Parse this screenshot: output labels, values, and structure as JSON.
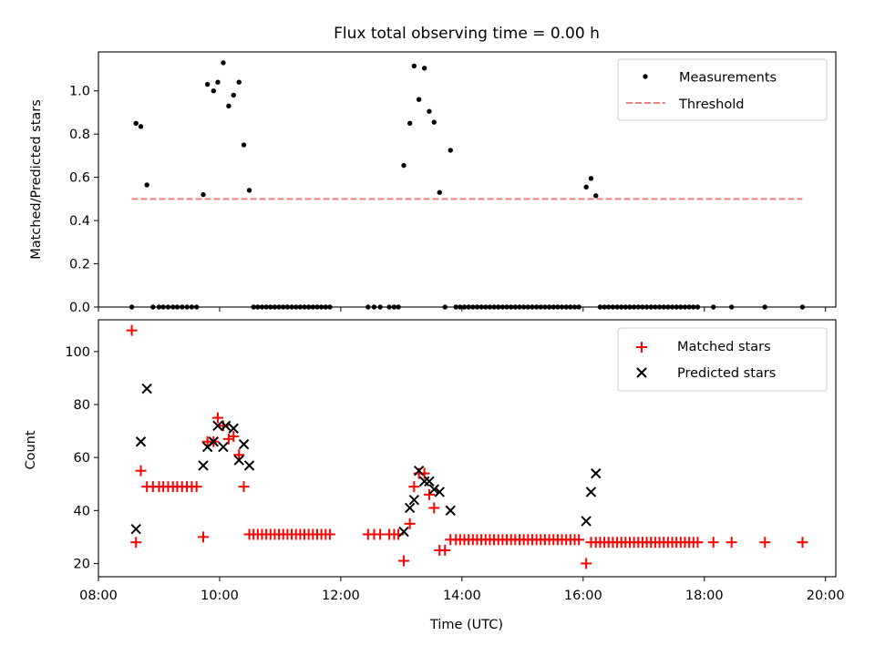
{
  "chart_data": [
    {
      "type": "scatter",
      "title": "Flux total observing time = 0.00 h",
      "xlabel": "",
      "ylabel": "Matched/Predicted stars",
      "ylim": [
        0,
        1.18
      ],
      "xlim": [
        8.0,
        20.17
      ],
      "y_ticks": [
        "0.0",
        "0.2",
        "0.4",
        "0.6",
        "0.8",
        "1.0"
      ],
      "x_tick_labels_shown": false,
      "legend_position": "top-right",
      "series": [
        {
          "name": "Measurements",
          "marker": "dot",
          "color": "#000000",
          "points": [
            [
              8.55,
              0
            ],
            [
              8.62,
              0.85
            ],
            [
              8.7,
              0.835
            ],
            [
              8.8,
              0.565
            ],
            [
              8.9,
              0
            ],
            [
              9.0,
              0
            ],
            [
              9.07,
              0
            ],
            [
              9.15,
              0
            ],
            [
              9.23,
              0
            ],
            [
              9.3,
              0
            ],
            [
              9.38,
              0
            ],
            [
              9.46,
              0
            ],
            [
              9.54,
              0
            ],
            [
              9.62,
              0
            ],
            [
              9.73,
              0.52
            ],
            [
              9.8,
              1.03
            ],
            [
              9.9,
              1.0
            ],
            [
              9.97,
              1.04
            ],
            [
              10.06,
              1.13
            ],
            [
              10.15,
              0.93
            ],
            [
              10.23,
              0.98
            ],
            [
              10.32,
              1.04
            ],
            [
              10.4,
              0.75
            ],
            [
              10.49,
              0.54
            ],
            [
              10.56,
              0
            ],
            [
              10.63,
              0
            ],
            [
              10.7,
              0
            ],
            [
              10.77,
              0
            ],
            [
              10.84,
              0
            ],
            [
              10.91,
              0
            ],
            [
              10.98,
              0
            ],
            [
              11.05,
              0
            ],
            [
              11.12,
              0
            ],
            [
              11.19,
              0
            ],
            [
              11.26,
              0
            ],
            [
              11.33,
              0
            ],
            [
              11.4,
              0
            ],
            [
              11.47,
              0
            ],
            [
              11.54,
              0
            ],
            [
              11.61,
              0
            ],
            [
              11.68,
              0
            ],
            [
              11.75,
              0
            ],
            [
              11.82,
              0
            ],
            [
              12.45,
              0
            ],
            [
              12.55,
              0
            ],
            [
              12.65,
              0
            ],
            [
              12.8,
              0
            ],
            [
              12.88,
              0
            ],
            [
              12.95,
              0
            ],
            [
              13.04,
              0.655
            ],
            [
              13.14,
              0.85
            ],
            [
              13.21,
              1.115
            ],
            [
              13.29,
              0.96
            ],
            [
              13.38,
              1.105
            ],
            [
              13.46,
              0.905
            ],
            [
              13.54,
              0.855
            ],
            [
              13.63,
              0.53
            ],
            [
              13.81,
              0.725
            ],
            [
              13.72,
              0
            ],
            [
              13.9,
              0
            ],
            [
              13.97,
              0
            ],
            [
              14.04,
              0
            ],
            [
              14.11,
              0
            ],
            [
              14.18,
              0
            ],
            [
              14.25,
              0
            ],
            [
              14.32,
              0
            ],
            [
              14.39,
              0
            ],
            [
              14.46,
              0
            ],
            [
              14.53,
              0
            ],
            [
              14.6,
              0
            ],
            [
              14.67,
              0
            ],
            [
              14.74,
              0
            ],
            [
              14.81,
              0
            ],
            [
              14.88,
              0
            ],
            [
              14.95,
              0
            ],
            [
              15.02,
              0
            ],
            [
              15.09,
              0
            ],
            [
              15.16,
              0
            ],
            [
              15.23,
              0
            ],
            [
              15.3,
              0
            ],
            [
              15.37,
              0
            ],
            [
              15.44,
              0
            ],
            [
              15.51,
              0
            ],
            [
              15.58,
              0
            ],
            [
              15.65,
              0
            ],
            [
              15.72,
              0
            ],
            [
              15.79,
              0
            ],
            [
              15.86,
              0
            ],
            [
              15.93,
              0
            ],
            [
              16.05,
              0.555
            ],
            [
              16.13,
              0.595
            ],
            [
              16.21,
              0.515
            ],
            [
              16.28,
              0
            ],
            [
              16.35,
              0
            ],
            [
              16.42,
              0
            ],
            [
              16.49,
              0
            ],
            [
              16.56,
              0
            ],
            [
              16.63,
              0
            ],
            [
              16.7,
              0
            ],
            [
              16.77,
              0
            ],
            [
              16.84,
              0
            ],
            [
              16.91,
              0
            ],
            [
              16.98,
              0
            ],
            [
              17.05,
              0
            ],
            [
              17.12,
              0
            ],
            [
              17.19,
              0
            ],
            [
              17.26,
              0
            ],
            [
              17.33,
              0
            ],
            [
              17.4,
              0
            ],
            [
              17.47,
              0
            ],
            [
              17.54,
              0
            ],
            [
              17.61,
              0
            ],
            [
              17.68,
              0
            ],
            [
              17.75,
              0
            ],
            [
              17.82,
              0
            ],
            [
              17.89,
              0
            ],
            [
              18.15,
              0
            ],
            [
              18.45,
              0
            ],
            [
              19.0,
              0
            ],
            [
              19.62,
              0
            ]
          ]
        },
        {
          "name": "Threshold",
          "type": "line",
          "style": "dashed",
          "color": "#f08080",
          "x": [
            8.55,
            19.62
          ],
          "y": [
            0.5,
            0.5
          ]
        }
      ]
    },
    {
      "type": "scatter",
      "title": "",
      "xlabel": "Time (UTC)",
      "ylabel": "Count",
      "ylim": [
        15,
        112
      ],
      "xlim": [
        8.0,
        20.17
      ],
      "x_ticks": [
        8,
        10,
        12,
        14,
        16,
        18,
        20
      ],
      "x_tick_labels": [
        "08:00",
        "10:00",
        "12:00",
        "14:00",
        "16:00",
        "18:00",
        "20:00"
      ],
      "y_ticks": [
        "20",
        "40",
        "60",
        "80",
        "100"
      ],
      "legend_position": "top-right",
      "series": [
        {
          "name": "Matched stars",
          "marker": "plus",
          "color": "#ff0000",
          "points": [
            [
              8.55,
              108
            ],
            [
              8.62,
              28
            ],
            [
              8.7,
              55
            ],
            [
              8.8,
              49
            ],
            [
              8.9,
              49
            ],
            [
              9.0,
              49
            ],
            [
              9.07,
              49
            ],
            [
              9.15,
              49
            ],
            [
              9.23,
              49
            ],
            [
              9.3,
              49
            ],
            [
              9.38,
              49
            ],
            [
              9.46,
              49
            ],
            [
              9.54,
              49
            ],
            [
              9.62,
              49
            ],
            [
              9.73,
              30
            ],
            [
              9.8,
              66
            ],
            [
              9.9,
              66
            ],
            [
              9.97,
              75
            ],
            [
              10.06,
              72
            ],
            [
              10.15,
              67
            ],
            [
              10.23,
              68
            ],
            [
              10.32,
              61
            ],
            [
              10.4,
              49
            ],
            [
              10.49,
              31
            ],
            [
              10.56,
              31
            ],
            [
              10.63,
              31
            ],
            [
              10.7,
              31
            ],
            [
              10.77,
              31
            ],
            [
              10.84,
              31
            ],
            [
              10.91,
              31
            ],
            [
              10.98,
              31
            ],
            [
              11.05,
              31
            ],
            [
              11.12,
              31
            ],
            [
              11.19,
              31
            ],
            [
              11.26,
              31
            ],
            [
              11.33,
              31
            ],
            [
              11.4,
              31
            ],
            [
              11.47,
              31
            ],
            [
              11.54,
              31
            ],
            [
              11.61,
              31
            ],
            [
              11.68,
              31
            ],
            [
              11.75,
              31
            ],
            [
              11.82,
              31
            ],
            [
              12.45,
              31
            ],
            [
              12.55,
              31
            ],
            [
              12.65,
              31
            ],
            [
              12.8,
              31
            ],
            [
              12.88,
              31
            ],
            [
              12.95,
              31
            ],
            [
              13.04,
              21
            ],
            [
              13.14,
              35
            ],
            [
              13.21,
              49
            ],
            [
              13.29,
              54
            ],
            [
              13.38,
              54
            ],
            [
              13.46,
              46
            ],
            [
              13.54,
              41
            ],
            [
              13.63,
              25
            ],
            [
              13.72,
              25
            ],
            [
              13.81,
              29
            ],
            [
              13.9,
              29
            ],
            [
              13.97,
              29
            ],
            [
              14.04,
              29
            ],
            [
              14.11,
              29
            ],
            [
              14.18,
              29
            ],
            [
              14.25,
              29
            ],
            [
              14.32,
              29
            ],
            [
              14.39,
              29
            ],
            [
              14.46,
              29
            ],
            [
              14.53,
              29
            ],
            [
              14.6,
              29
            ],
            [
              14.67,
              29
            ],
            [
              14.74,
              29
            ],
            [
              14.81,
              29
            ],
            [
              14.88,
              29
            ],
            [
              14.95,
              29
            ],
            [
              15.02,
              29
            ],
            [
              15.09,
              29
            ],
            [
              15.16,
              29
            ],
            [
              15.23,
              29
            ],
            [
              15.3,
              29
            ],
            [
              15.37,
              29
            ],
            [
              15.44,
              29
            ],
            [
              15.51,
              29
            ],
            [
              15.58,
              29
            ],
            [
              15.65,
              29
            ],
            [
              15.72,
              29
            ],
            [
              15.79,
              29
            ],
            [
              15.86,
              29
            ],
            [
              15.93,
              29
            ],
            [
              16.05,
              20
            ],
            [
              16.13,
              28
            ],
            [
              16.21,
              28
            ],
            [
              16.28,
              28
            ],
            [
              16.35,
              28
            ],
            [
              16.42,
              28
            ],
            [
              16.49,
              28
            ],
            [
              16.56,
              28
            ],
            [
              16.63,
              28
            ],
            [
              16.7,
              28
            ],
            [
              16.77,
              28
            ],
            [
              16.84,
              28
            ],
            [
              16.91,
              28
            ],
            [
              16.98,
              28
            ],
            [
              17.05,
              28
            ],
            [
              17.12,
              28
            ],
            [
              17.19,
              28
            ],
            [
              17.26,
              28
            ],
            [
              17.33,
              28
            ],
            [
              17.4,
              28
            ],
            [
              17.47,
              28
            ],
            [
              17.54,
              28
            ],
            [
              17.61,
              28
            ],
            [
              17.68,
              28
            ],
            [
              17.75,
              28
            ],
            [
              17.82,
              28
            ],
            [
              17.89,
              28
            ],
            [
              18.15,
              28
            ],
            [
              18.45,
              28
            ],
            [
              19.0,
              28
            ],
            [
              19.62,
              28
            ]
          ]
        },
        {
          "name": "Predicted stars",
          "marker": "x",
          "color": "#000000",
          "points": [
            [
              8.62,
              33
            ],
            [
              8.7,
              66
            ],
            [
              8.8,
              86
            ],
            [
              9.73,
              57
            ],
            [
              9.8,
              64
            ],
            [
              9.9,
              66
            ],
            [
              9.97,
              72
            ],
            [
              10.06,
              64
            ],
            [
              10.1,
              72
            ],
            [
              10.23,
              71
            ],
            [
              10.32,
              59
            ],
            [
              10.4,
              65
            ],
            [
              10.49,
              57
            ],
            [
              13.04,
              32
            ],
            [
              13.14,
              41
            ],
            [
              13.21,
              44
            ],
            [
              13.29,
              55
            ],
            [
              13.38,
              51
            ],
            [
              13.46,
              51
            ],
            [
              13.54,
              48
            ],
            [
              13.63,
              47
            ],
            [
              13.81,
              40
            ],
            [
              16.05,
              36
            ],
            [
              16.13,
              47
            ],
            [
              16.21,
              54
            ]
          ]
        }
      ]
    }
  ]
}
